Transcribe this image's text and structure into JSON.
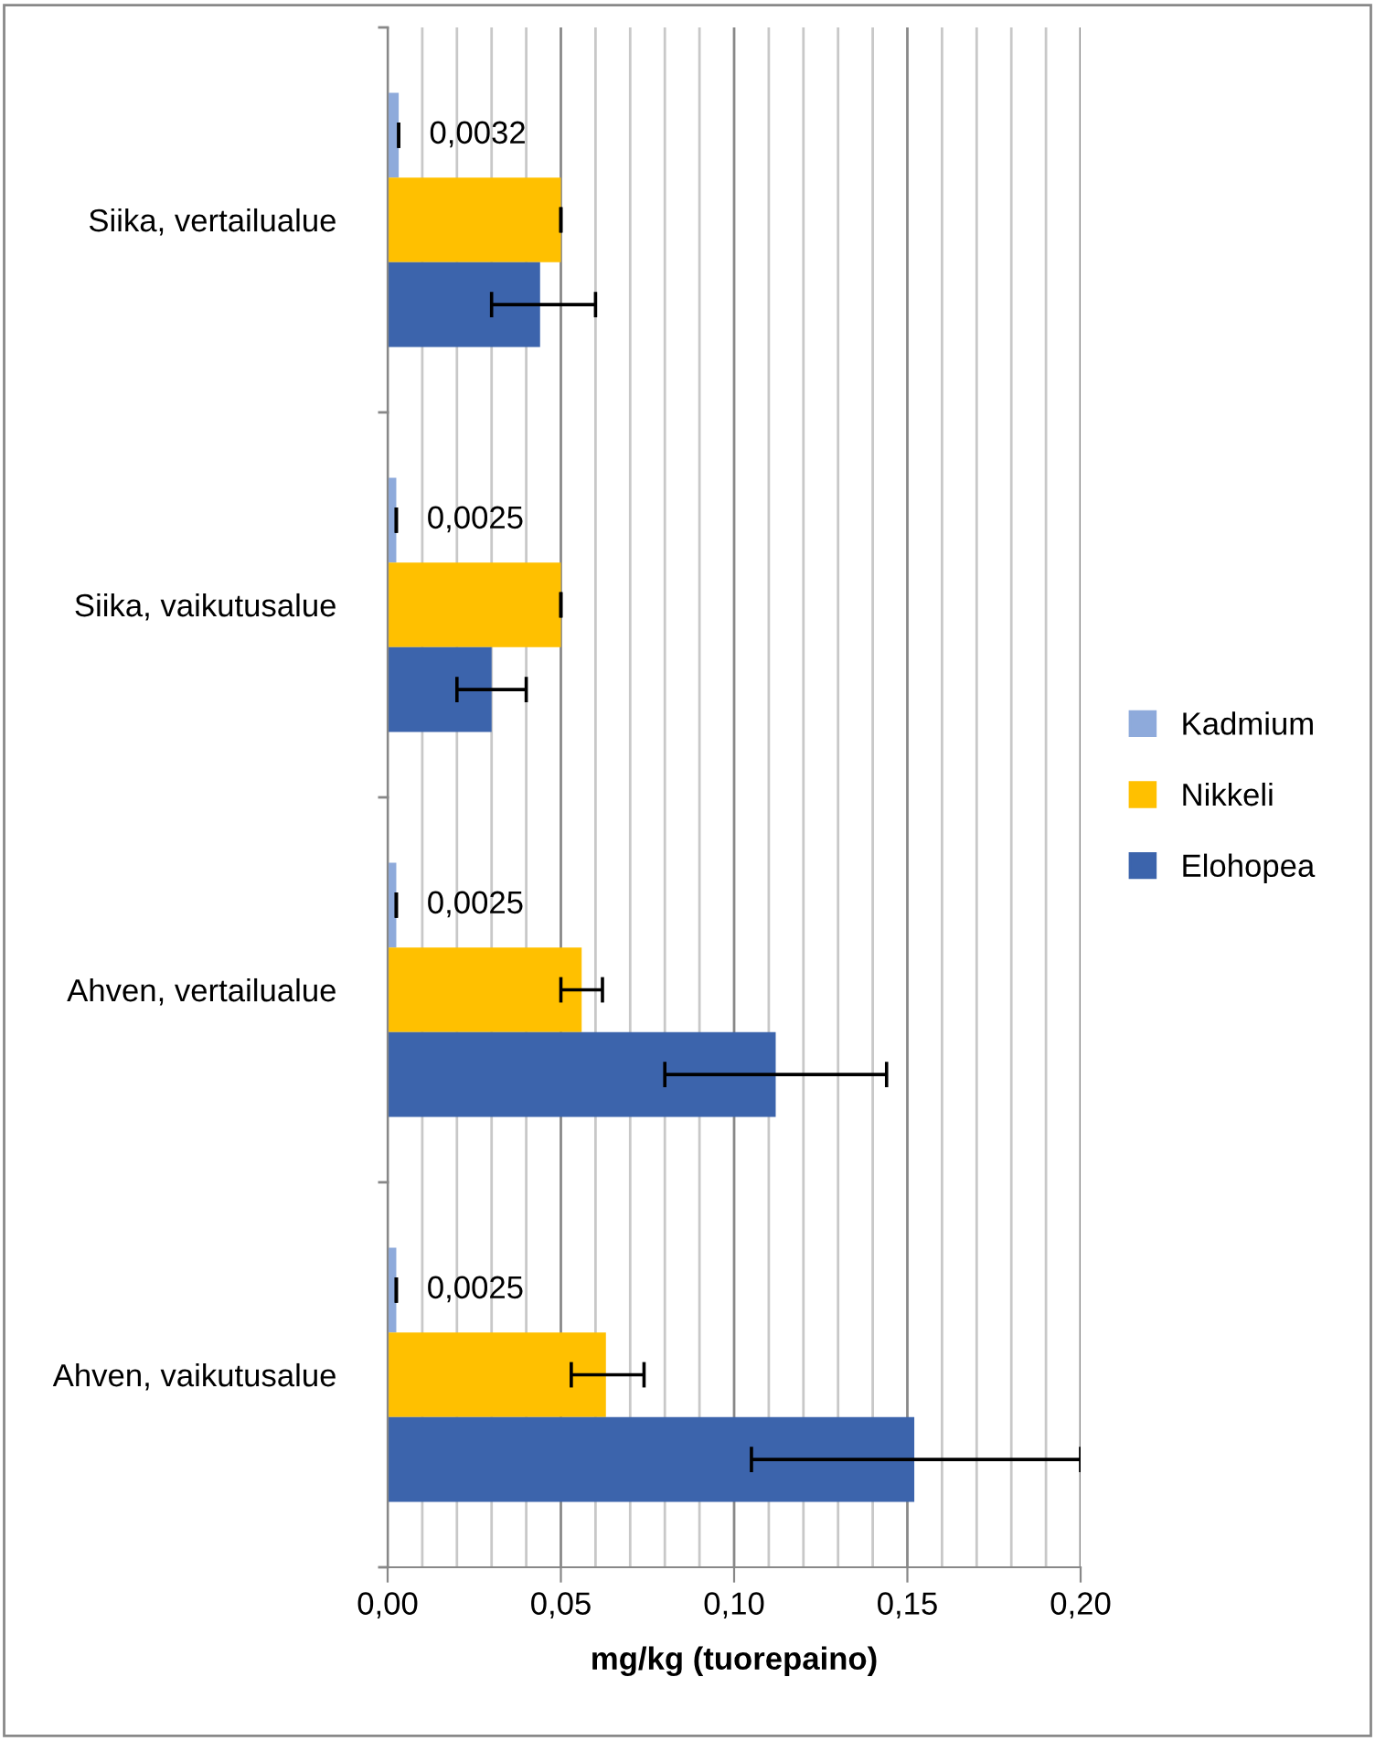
{
  "chart_data": {
    "type": "bar",
    "orientation": "horizontal",
    "xlabel": "mg/kg (tuorepaino)",
    "categories": [
      "Siika, vertailualue",
      "Siika, vaikutusalue",
      "Ahven, vertailualue",
      "Ahven, vaikutusalue"
    ],
    "series": [
      {
        "name": "Kadmium",
        "color": "#8eaadb",
        "values": [
          0.0032,
          0.0025,
          0.0025,
          0.0025
        ],
        "errors": [
          0,
          0,
          0,
          0
        ],
        "value_labels": [
          "0,0032",
          "0,0025",
          "0,0025",
          "0,0025"
        ]
      },
      {
        "name": "Nikkeli",
        "color": "#ffc000",
        "values": [
          0.05,
          0.05,
          0.056,
          0.063
        ],
        "errors": [
          0,
          0,
          [
            0.05,
            0.062
          ],
          [
            0.053,
            0.074
          ]
        ]
      },
      {
        "name": "Elohopea",
        "color": "#3c64ac",
        "values": [
          0.044,
          0.03,
          0.112,
          0.152
        ],
        "errors": [
          [
            0.03,
            0.06
          ],
          [
            0.02,
            0.04
          ],
          [
            0.08,
            0.144
          ],
          [
            0.105,
            0.2
          ]
        ]
      }
    ],
    "xlim": [
      0,
      0.2
    ],
    "xticks": [
      {
        "value": 0,
        "label": "0,00"
      },
      {
        "value": 0.01,
        "label": null
      },
      {
        "value": 0.02,
        "label": null
      },
      {
        "value": 0.03,
        "label": null
      },
      {
        "value": 0.04,
        "label": null
      },
      {
        "value": 0.05,
        "label": "0,05"
      },
      {
        "value": 0.06,
        "label": null
      },
      {
        "value": 0.07,
        "label": null
      },
      {
        "value": 0.08,
        "label": null
      },
      {
        "value": 0.09,
        "label": null
      },
      {
        "value": 0.1,
        "label": "0,10"
      },
      {
        "value": 0.11,
        "label": null
      },
      {
        "value": 0.12,
        "label": null
      },
      {
        "value": 0.13,
        "label": null
      },
      {
        "value": 0.14,
        "label": null
      },
      {
        "value": 0.15,
        "label": "0,15"
      },
      {
        "value": 0.16,
        "label": null
      },
      {
        "value": 0.17,
        "label": null
      },
      {
        "value": 0.18,
        "label": null
      },
      {
        "value": 0.19,
        "label": null
      },
      {
        "value": 0.2,
        "label": "0,20"
      }
    ],
    "grid": "x",
    "legend": "right"
  }
}
